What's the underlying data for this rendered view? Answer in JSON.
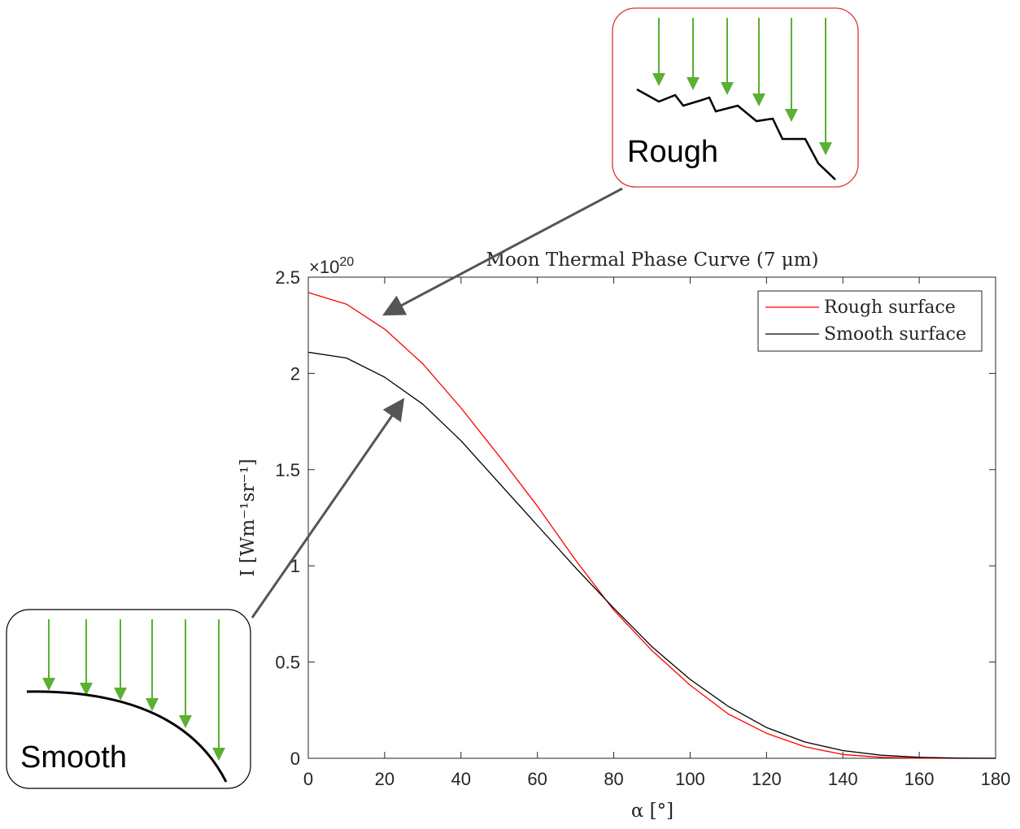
{
  "chart_data": {
    "type": "line",
    "title": "Moon Thermal Phase Curve (7 μm)",
    "xlabel": "α [°]",
    "ylabel": "I [Wm⁻¹sr⁻¹]",
    "y_multiplier": {
      "base": "×10",
      "exponent": "20"
    },
    "xlim": [
      0,
      180
    ],
    "ylim": [
      0,
      2.5
    ],
    "x_ticks": [
      "0",
      "20",
      "40",
      "60",
      "80",
      "100",
      "120",
      "140",
      "160",
      "180"
    ],
    "y_ticks": [
      "0",
      "0.5",
      "1",
      "1.5",
      "2",
      "2.5"
    ],
    "x": [
      0,
      10,
      20,
      30,
      40,
      50,
      60,
      70,
      80,
      90,
      100,
      110,
      120,
      130,
      140,
      150,
      160,
      170,
      180
    ],
    "series": [
      {
        "name": "Rough surface",
        "color": "#ff0000",
        "values": [
          2.42,
          2.36,
          2.23,
          2.05,
          1.82,
          1.57,
          1.31,
          1.03,
          0.77,
          0.56,
          0.38,
          0.23,
          0.13,
          0.06,
          0.02,
          0.005,
          0.001,
          0.0,
          0.0
        ]
      },
      {
        "name": "Smooth surface",
        "color": "#000000",
        "values": [
          2.11,
          2.08,
          1.98,
          1.84,
          1.65,
          1.43,
          1.21,
          0.99,
          0.78,
          0.58,
          0.41,
          0.27,
          0.16,
          0.085,
          0.04,
          0.016,
          0.005,
          0.001,
          0.0
        ]
      }
    ],
    "legend_position": "top-right",
    "grid": false
  },
  "callouts": {
    "rough": {
      "label": "Rough",
      "border_color": "#e03030",
      "arrow_color": "#5ab032"
    },
    "smooth": {
      "label": "Smooth",
      "border_color": "#000000",
      "arrow_color": "#5ab032"
    },
    "pointer_color": "#555555"
  }
}
